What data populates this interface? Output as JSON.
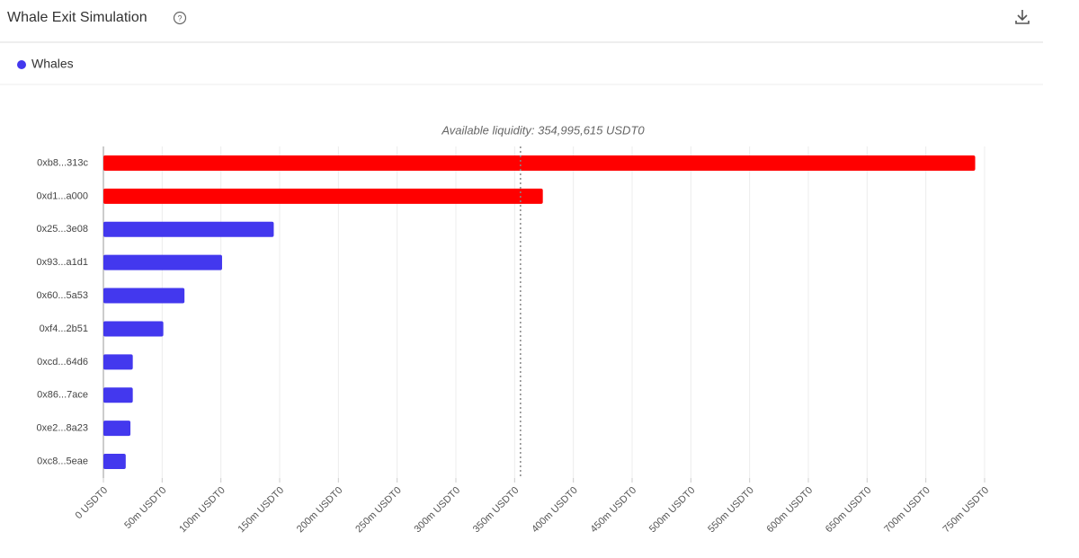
{
  "header": {
    "title": "Whale Exit Simulation"
  },
  "chart_data": {
    "type": "bar",
    "orientation": "horizontal",
    "categories": [
      "0xb8...313c",
      "0xd1...a000",
      "0x25...3e08",
      "0x93...a1d1",
      "0x60...5a53",
      "0xf4...2b51",
      "0xcd...64d6",
      "0x86...7ace",
      "0xe2...8a23",
      "0xc8...5eae"
    ],
    "series": [
      {
        "name": "Whales",
        "color": "#4338ee",
        "values": [
          742000000,
          374000000,
          145000000,
          101000000,
          69000000,
          51000000,
          25000000,
          25000000,
          23000000,
          19000000
        ]
      }
    ],
    "bar_colors": [
      "#ff0000",
      "#ff0000",
      "#4338ee",
      "#4338ee",
      "#4338ee",
      "#4338ee",
      "#4338ee",
      "#4338ee",
      "#4338ee",
      "#4338ee"
    ],
    "xlim": [
      0,
      750000000
    ],
    "xticks": [
      {
        "value": 0,
        "label": "0 USDT0"
      },
      {
        "value": 50000000,
        "label": "50m USDT0"
      },
      {
        "value": 100000000,
        "label": "100m USDT0"
      },
      {
        "value": 150000000,
        "label": "150m USDT0"
      },
      {
        "value": 200000000,
        "label": "200m USDT0"
      },
      {
        "value": 250000000,
        "label": "250m USDT0"
      },
      {
        "value": 300000000,
        "label": "300m USDT0"
      },
      {
        "value": 350000000,
        "label": "350m USDT0"
      },
      {
        "value": 400000000,
        "label": "400m USDT0"
      },
      {
        "value": 450000000,
        "label": "450m USDT0"
      },
      {
        "value": 500000000,
        "label": "500m USDT0"
      },
      {
        "value": 550000000,
        "label": "550m USDT0"
      },
      {
        "value": 600000000,
        "label": "600m USDT0"
      },
      {
        "value": 650000000,
        "label": "650m USDT0"
      },
      {
        "value": 700000000,
        "label": "700m USDT0"
      },
      {
        "value": 750000000,
        "label": "750m USDT0"
      }
    ],
    "grid": true,
    "reference_line": {
      "value": 354995615,
      "label": "Available liquidity: 354,995,615 USDT0"
    }
  }
}
